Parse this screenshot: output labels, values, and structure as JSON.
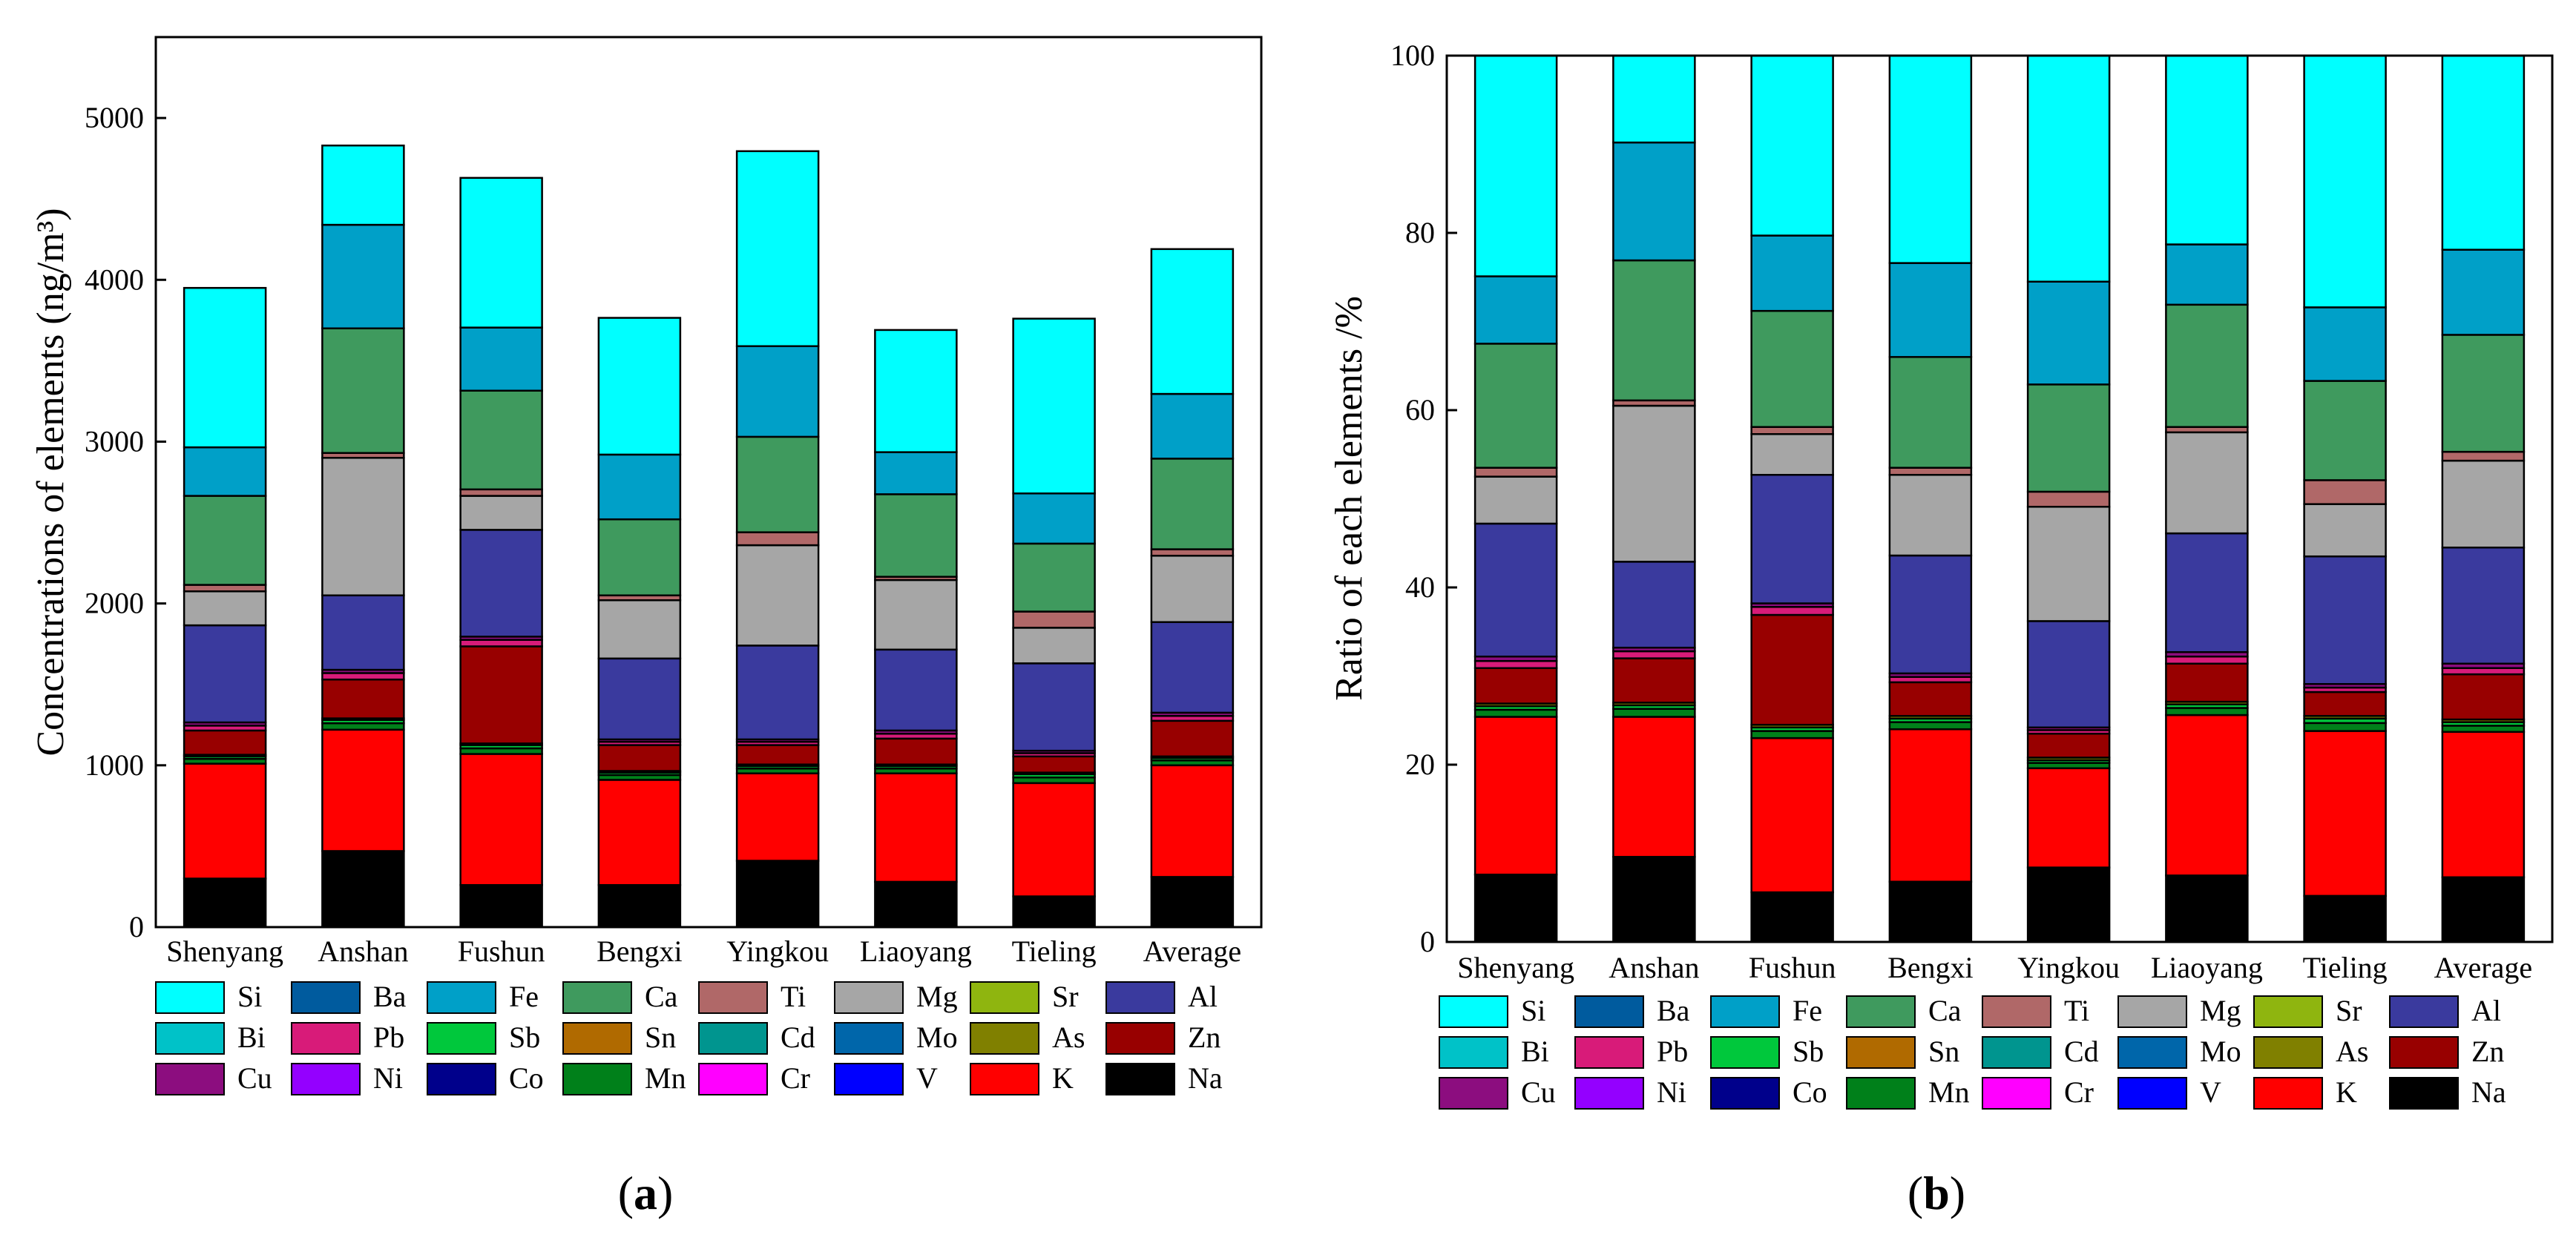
{
  "colors": {
    "Si": "#00ffff",
    "Ba": "#005b9e",
    "Fe": "#00a0c8",
    "Ca": "#3f9a5e",
    "Ti": "#b06868",
    "Mg": "#a6a6a6",
    "Sr": "#8fb50f",
    "Al": "#3a3a9e",
    "Bi": "#00c2c8",
    "Pb": "#d81b79",
    "Sb": "#00c83c",
    "Sn": "#b06a00",
    "Cd": "#00958f",
    "Mo": "#0066aa",
    "As": "#808000",
    "Zn": "#980000",
    "Cu": "#8c0d7f",
    "Ni": "#9400ff",
    "Co": "#00008b",
    "Mn": "#00801a",
    "Cr": "#ff00ff",
    "V": "#0000ff",
    "K": "#ff0000",
    "Na": "#000000"
  },
  "legend": {
    "rows": [
      [
        "Si",
        "Ba",
        "Fe",
        "Ca",
        "Ti",
        "Mg",
        "Sr",
        "Al"
      ],
      [
        "Bi",
        "Pb",
        "Sb",
        "Sn",
        "Cd",
        "Mo",
        "As",
        "Zn"
      ],
      [
        "Cu",
        "Ni",
        "Co",
        "Mn",
        "Cr",
        "V",
        "K",
        "Na"
      ]
    ]
  },
  "chart_data": [
    {
      "type": "bar",
      "stacked": true,
      "panel_label": "(a)",
      "panel_letter": "a",
      "title": "",
      "xlabel": "",
      "ylabel": "Concentrations of elements (ng/m³)",
      "ylim": [
        0,
        5500
      ],
      "yticks": [
        0,
        1000,
        2000,
        3000,
        4000,
        5000
      ],
      "categories": [
        "Shenyang",
        "Anshan",
        "Fushun",
        "Bengxi",
        "Yingkou",
        "Liaoyang",
        "Tieling",
        "Average"
      ],
      "series": [
        {
          "name": "Na",
          "values": [
            300,
            470,
            260,
            260,
            410,
            280,
            190,
            310
          ]
        },
        {
          "name": "K",
          "values": [
            710,
            750,
            810,
            650,
            540,
            670,
            700,
            690
          ]
        },
        {
          "name": "Mn",
          "values": [
            30,
            40,
            35,
            30,
            30,
            30,
            35,
            30
          ]
        },
        {
          "name": "Sb",
          "values": [
            15,
            20,
            20,
            15,
            15,
            15,
            20,
            15
          ]
        },
        {
          "name": "As",
          "values": [
            10,
            10,
            10,
            10,
            10,
            10,
            10,
            10
          ]
        },
        {
          "name": "Zn",
          "values": [
            150,
            240,
            600,
            160,
            120,
            160,
            100,
            220
          ]
        },
        {
          "name": "Pb",
          "values": [
            30,
            40,
            40,
            20,
            20,
            30,
            20,
            30
          ]
        },
        {
          "name": "Cu",
          "values": [
            20,
            20,
            20,
            15,
            15,
            20,
            15,
            20
          ]
        },
        {
          "name": "Al",
          "values": [
            600,
            460,
            660,
            500,
            580,
            500,
            540,
            560
          ]
        },
        {
          "name": "Mg",
          "values": [
            210,
            850,
            210,
            360,
            620,
            430,
            220,
            410
          ]
        },
        {
          "name": "Ti",
          "values": [
            40,
            30,
            40,
            30,
            80,
            20,
            100,
            40
          ]
        },
        {
          "name": "Ca",
          "values": [
            550,
            770,
            610,
            470,
            590,
            510,
            420,
            560
          ]
        },
        {
          "name": "Fe",
          "values": [
            300,
            640,
            390,
            400,
            560,
            260,
            310,
            400
          ]
        },
        {
          "name": "Si",
          "values": [
            985,
            490,
            925,
            845,
            1205,
            755,
            1080,
            895
          ]
        }
      ]
    },
    {
      "type": "bar",
      "stacked": true,
      "panel_label": "(b)",
      "panel_letter": "b",
      "title": "",
      "xlabel": "",
      "ylabel": "Ratio of each elements /%",
      "ylim": [
        0,
        100
      ],
      "yticks": [
        0,
        20,
        40,
        60,
        80,
        100
      ],
      "categories": [
        "Shenyang",
        "Anshan",
        "Fushun",
        "Bengxi",
        "Yingkou",
        "Liaoyang",
        "Tieling",
        "Average"
      ],
      "series": [
        {
          "name": "Na",
          "values": [
            7.6,
            9.6,
            5.6,
            6.8,
            8.4,
            7.5,
            5.2,
            7.3
          ]
        },
        {
          "name": "K",
          "values": [
            17.8,
            15.8,
            17.4,
            17.2,
            11.2,
            18.1,
            18.6,
            16.4
          ]
        },
        {
          "name": "Mn",
          "values": [
            0.8,
            0.9,
            0.8,
            0.8,
            0.6,
            0.8,
            0.9,
            0.7
          ]
        },
        {
          "name": "Sb",
          "values": [
            0.4,
            0.4,
            0.4,
            0.4,
            0.3,
            0.4,
            0.5,
            0.4
          ]
        },
        {
          "name": "As",
          "values": [
            0.3,
            0.3,
            0.3,
            0.3,
            0.3,
            0.3,
            0.3,
            0.3
          ]
        },
        {
          "name": "Zn",
          "values": [
            4.0,
            5.0,
            12.4,
            3.8,
            2.7,
            4.3,
            2.7,
            5.1
          ]
        },
        {
          "name": "Pb",
          "values": [
            0.8,
            0.8,
            0.9,
            0.6,
            0.4,
            0.8,
            0.5,
            0.7
          ]
        },
        {
          "name": "Cu",
          "values": [
            0.5,
            0.4,
            0.4,
            0.4,
            0.3,
            0.5,
            0.4,
            0.5
          ]
        },
        {
          "name": "Al",
          "values": [
            15.0,
            9.7,
            14.5,
            13.3,
            12.0,
            13.4,
            14.4,
            13.1
          ]
        },
        {
          "name": "Mg",
          "values": [
            5.3,
            17.6,
            4.6,
            9.1,
            12.9,
            11.4,
            5.9,
            9.8
          ]
        },
        {
          "name": "Ti",
          "values": [
            1.0,
            0.6,
            0.8,
            0.8,
            1.7,
            0.6,
            2.7,
            1.0
          ]
        },
        {
          "name": "Ca",
          "values": [
            14.0,
            15.8,
            13.1,
            12.5,
            12.1,
            13.8,
            11.2,
            13.2
          ]
        },
        {
          "name": "Fe",
          "values": [
            7.6,
            13.3,
            8.5,
            10.6,
            11.6,
            6.8,
            8.3,
            9.6
          ]
        },
        {
          "name": "Si",
          "values": [
            24.9,
            9.8,
            20.3,
            23.4,
            25.5,
            21.3,
            28.4,
            21.9
          ]
        }
      ]
    }
  ]
}
